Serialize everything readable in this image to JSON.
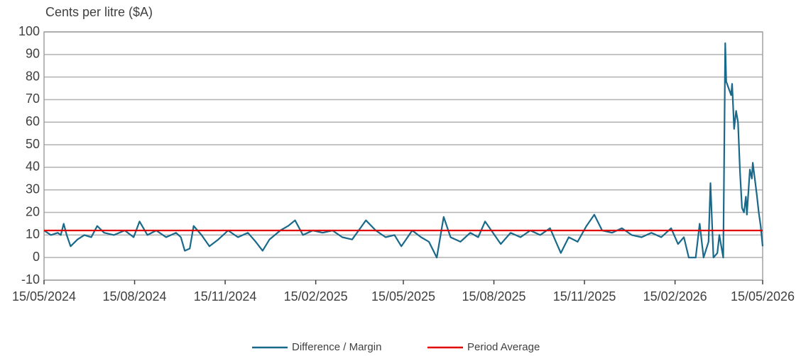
{
  "chart_data": {
    "type": "line",
    "ylabel": "Cents per litre ($A)",
    "xlim": [
      "15/05/2024",
      "15/05/2026"
    ],
    "xticks": [
      "15/05/2024",
      "15/08/2024",
      "15/11/2024",
      "15/02/2025",
      "15/05/2025",
      "15/08/2025",
      "15/11/2025",
      "15/02/2026",
      "15/05/2026"
    ],
    "ylim": [
      -10,
      100
    ],
    "yticks": [
      -10,
      0,
      10,
      20,
      30,
      40,
      50,
      60,
      70,
      80,
      90,
      100
    ],
    "grid": true,
    "x": [
      "15/05/2024",
      "22/05/2024",
      "29/05/2024",
      "01/06/2024",
      "04/06/2024",
      "07/06/2024",
      "11/06/2024",
      "18/06/2024",
      "25/06/2024",
      "02/07/2024",
      "08/07/2024",
      "15/07/2024",
      "25/07/2024",
      "05/08/2024",
      "14/08/2024",
      "20/08/2024",
      "28/08/2024",
      "06/09/2024",
      "16/09/2024",
      "26/09/2024",
      "01/10/2024",
      "05/10/2024",
      "10/10/2024",
      "14/10/2024",
      "22/10/2024",
      "30/10/2024",
      "08/11/2024",
      "18/11/2024",
      "28/11/2024",
      "08/12/2024",
      "16/12/2024",
      "23/12/2024",
      "30/12/2024",
      "10/01/2025",
      "18/01/2025",
      "25/01/2025",
      "02/02/2025",
      "12/02/2025",
      "22/02/2025",
      "04/03/2025",
      "14/03/2025",
      "24/03/2025",
      "07/04/2025",
      "17/04/2025",
      "27/04/2025",
      "06/05/2025",
      "13/05/2025",
      "24/05/2025",
      "02/06/2025",
      "10/06/2025",
      "18/06/2025",
      "25/06/2025",
      "02/07/2025",
      "12/07/2025",
      "22/07/2025",
      "30/07/2025",
      "06/08/2025",
      "14/08/2025",
      "22/08/2025",
      "01/09/2025",
      "11/09/2025",
      "21/09/2025",
      "01/10/2025",
      "11/10/2025",
      "22/10/2025",
      "30/10/2025",
      "08/11/2025",
      "17/11/2025",
      "25/11/2025",
      "03/12/2025",
      "13/12/2025",
      "23/12/2025",
      "02/01/2026",
      "12/01/2026",
      "22/01/2026",
      "01/02/2026",
      "11/02/2026",
      "18/02/2026",
      "24/02/2026",
      "01/03/2026",
      "08/03/2026",
      "12/03/2026",
      "16/03/2026",
      "21/03/2026",
      "23/03/2026",
      "26/03/2026",
      "30/03/2026",
      "01/04/2026",
      "05/04/2026",
      "07/04/2026",
      "08/04/2026",
      "13/04/2026",
      "14/04/2026",
      "16/04/2026",
      "18/04/2026",
      "20/04/2026",
      "22/04/2026",
      "24/04/2026",
      "26/04/2026",
      "28/04/2026",
      "29/04/2026",
      "02/05/2026",
      "04/05/2026",
      "05/05/2026",
      "07/05/2026",
      "09/05/2026",
      "11/05/2026",
      "13/05/2026",
      "15/05/2026"
    ],
    "series": [
      {
        "name": "Difference / Margin",
        "color": "#19698a",
        "values": [
          12,
          10,
          11,
          10,
          15,
          10,
          5,
          8,
          10,
          9,
          14,
          11,
          10,
          12,
          9,
          16,
          10,
          12,
          9,
          11,
          9,
          3,
          4,
          14,
          10,
          5,
          8,
          12,
          9,
          11,
          7,
          3,
          8,
          12,
          14,
          16.5,
          10,
          12,
          11,
          12,
          9,
          8,
          16.5,
          12,
          9,
          10,
          5,
          12,
          9,
          7,
          0,
          18,
          9,
          7,
          11,
          9,
          16,
          11,
          6,
          11,
          9,
          12,
          10,
          13,
          2,
          9,
          7,
          14,
          19,
          12,
          11,
          13,
          10,
          9,
          11,
          9,
          13,
          6,
          9,
          0,
          0,
          15,
          0,
          7,
          33,
          0,
          2,
          10,
          0,
          95,
          78,
          72,
          77,
          57,
          65,
          60,
          38,
          22,
          20,
          27,
          19,
          39,
          35,
          42,
          35,
          28,
          20,
          14,
          5
        ]
      },
      {
        "name": "Period Average",
        "color": "#e00000",
        "value": 12
      }
    ]
  }
}
